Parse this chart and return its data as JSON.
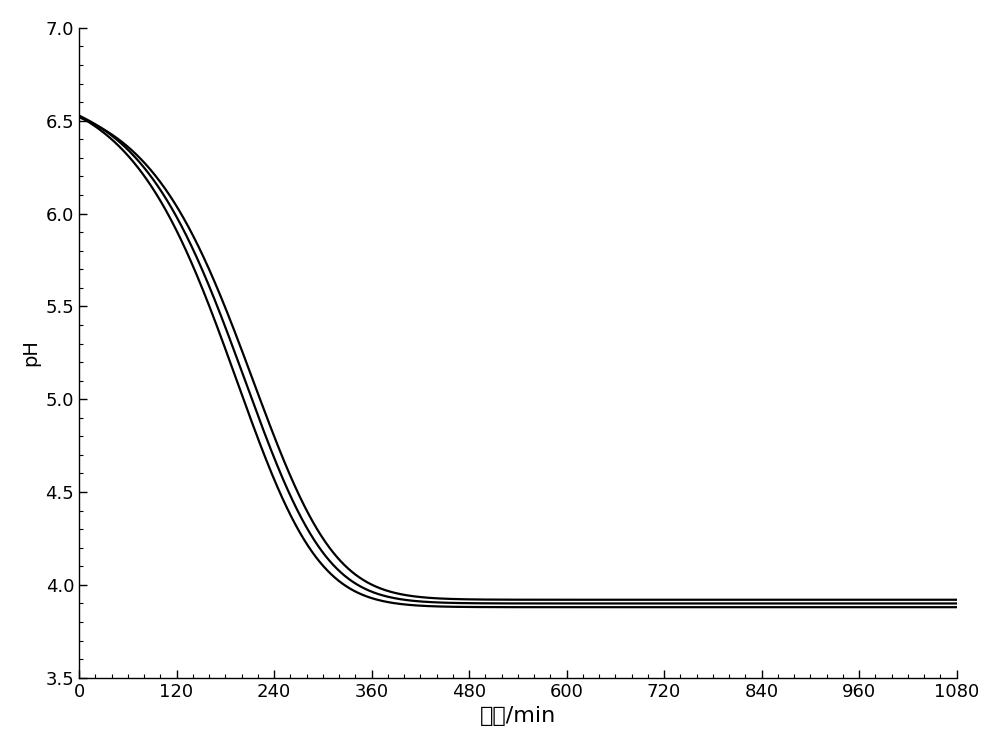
{
  "title": "",
  "xlabel": "时间/min",
  "ylabel": "pH",
  "xlim": [
    0,
    1080
  ],
  "ylim": [
    3.5,
    7.0
  ],
  "xticks": [
    0,
    120,
    240,
    360,
    480,
    600,
    720,
    840,
    960,
    1080
  ],
  "yticks": [
    3.5,
    4.0,
    4.5,
    5.0,
    5.5,
    6.0,
    6.5,
    7.0
  ],
  "line_color": "#000000",
  "background_color": "#ffffff",
  "line_width": 1.6,
  "curve_params": [
    {
      "y0": 6.68,
      "y_inf": 3.9,
      "x_mid": 270,
      "k": 0.014,
      "n": 2.5
    },
    {
      "y0": 6.7,
      "y_inf": 3.88,
      "x_mid": 260,
      "k": 0.014,
      "n": 2.5
    },
    {
      "y0": 6.65,
      "y_inf": 3.92,
      "x_mid": 280,
      "k": 0.014,
      "n": 2.5
    }
  ]
}
